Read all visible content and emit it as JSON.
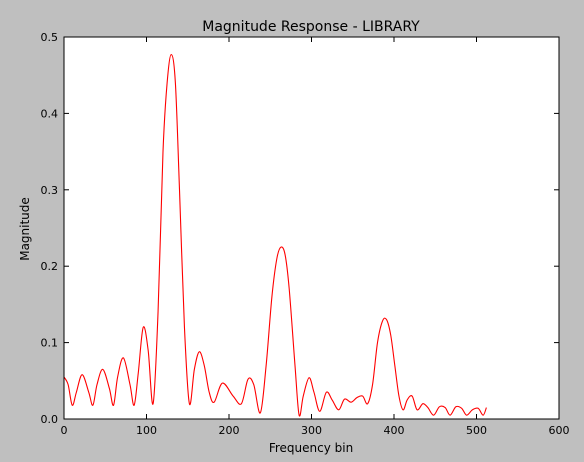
{
  "chart_data": {
    "type": "line",
    "title": "Magnitude Response - LIBRARY",
    "xlabel": "Frequency bin",
    "ylabel": "Magnitude",
    "xlim": [
      0,
      600
    ],
    "ylim": [
      0,
      0.5
    ],
    "xticks": [
      "0",
      "100",
      "200",
      "300",
      "400",
      "500",
      "600"
    ],
    "yticks": [
      "0.0",
      "0.1",
      "0.2",
      "0.3",
      "0.4",
      "0.5"
    ],
    "grid": false,
    "colors": {
      "figure_bg": "#bfbfbf",
      "axes_bg": "#ffffff",
      "line": "#ff0000"
    },
    "series": [
      {
        "x": [
          0,
          5,
          10,
          15,
          22,
          30,
          35,
          40,
          47,
          55,
          60,
          65,
          72,
          80,
          85,
          90,
          96,
          102,
          108,
          114,
          120,
          125,
          130,
          135,
          140,
          146,
          152,
          158,
          164,
          170,
          176,
          182,
          192,
          205,
          215,
          223,
          230,
          238,
          245,
          252,
          258,
          263,
          268,
          273,
          280,
          285,
          290,
          297,
          303,
          310,
          318,
          325,
          333,
          340,
          348,
          355,
          362,
          368,
          374,
          380,
          386,
          391,
          396,
          401,
          406,
          411,
          416,
          422,
          428,
          435,
          441,
          448,
          455,
          462,
          468,
          475,
          482,
          488,
          495,
          502,
          508,
          512
        ],
        "y": [
          0.055,
          0.045,
          0.018,
          0.035,
          0.058,
          0.035,
          0.018,
          0.045,
          0.065,
          0.04,
          0.018,
          0.055,
          0.08,
          0.045,
          0.018,
          0.06,
          0.12,
          0.09,
          0.02,
          0.14,
          0.35,
          0.44,
          0.477,
          0.44,
          0.3,
          0.12,
          0.02,
          0.065,
          0.088,
          0.07,
          0.035,
          0.022,
          0.047,
          0.03,
          0.02,
          0.052,
          0.045,
          0.008,
          0.07,
          0.16,
          0.21,
          0.225,
          0.215,
          0.17,
          0.07,
          0.005,
          0.03,
          0.054,
          0.035,
          0.01,
          0.035,
          0.025,
          0.012,
          0.026,
          0.022,
          0.028,
          0.03,
          0.02,
          0.045,
          0.1,
          0.128,
          0.13,
          0.11,
          0.07,
          0.03,
          0.012,
          0.025,
          0.03,
          0.012,
          0.02,
          0.015,
          0.005,
          0.016,
          0.015,
          0.005,
          0.016,
          0.014,
          0.005,
          0.012,
          0.014,
          0.005,
          0.015
        ]
      }
    ]
  }
}
